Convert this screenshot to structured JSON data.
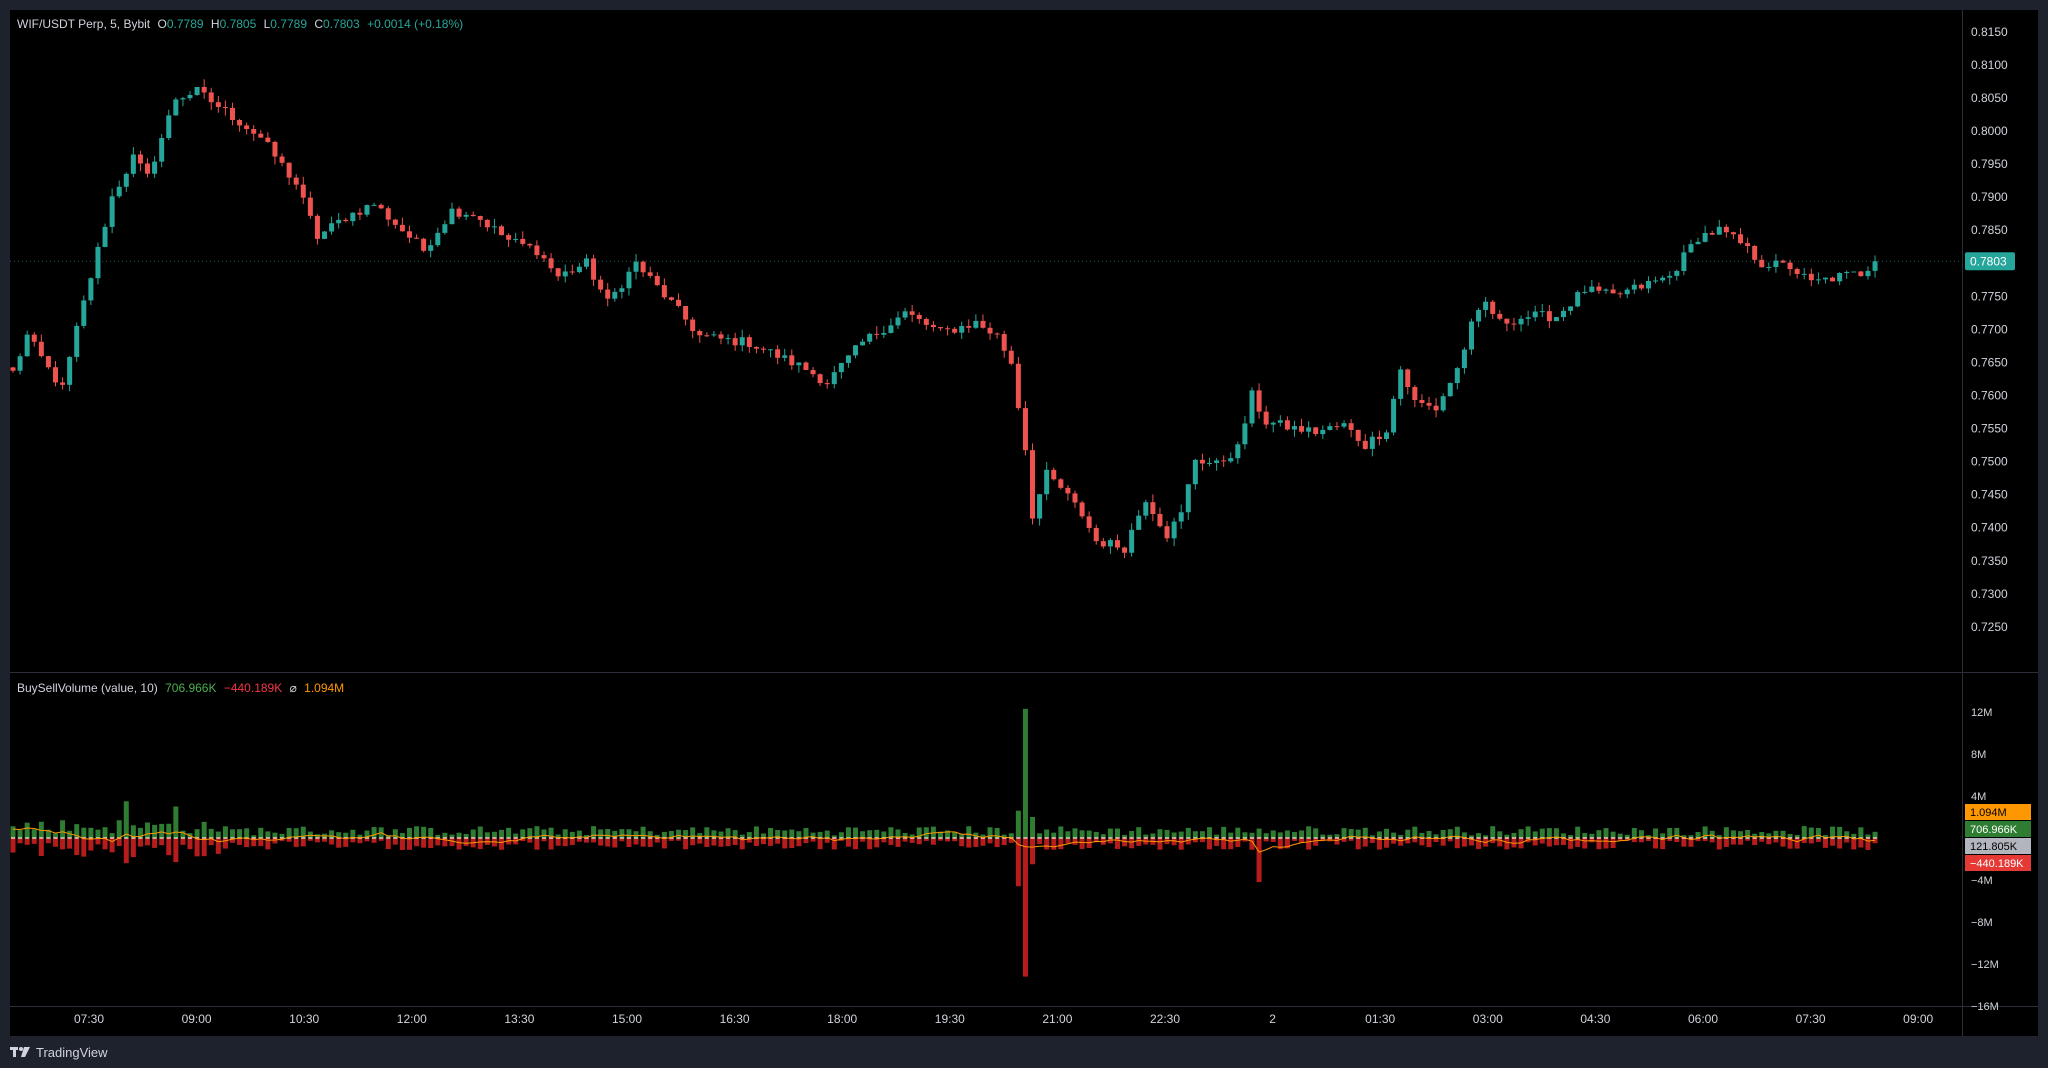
{
  "colors": {
    "up": "#26a69a",
    "down": "#ef5350",
    "buy_vol": "#2e7d32",
    "sell_vol": "#b71c1c",
    "avg_line": "#ff9800",
    "text": "#d1d4dc",
    "gray_label": "#b2b5be"
  },
  "header": {
    "symbol": "WIF/USDT Perp, 5, Bybit",
    "open_label": "O",
    "open": "0.7789",
    "high_label": "H",
    "high": "0.7805",
    "low_label": "L",
    "low": "0.7789",
    "close_label": "C",
    "close": "0.7803",
    "change": "+0.0014 (+0.18%)"
  },
  "indicator": {
    "name": "BuySellVolume (value, 10)",
    "buy": "706.966K",
    "sell": "−440.189K",
    "avg_symbol": "⌀",
    "avg": "1.094M"
  },
  "footer": {
    "brand": "TradingView"
  },
  "chart_data": [
    {
      "type": "candlestick",
      "title": "",
      "ylim": [
        0.7215,
        0.8165
      ],
      "y_ticks": [
        "0.8150",
        "0.8100",
        "0.8050",
        "0.8000",
        "0.7950",
        "0.7900",
        "0.7850",
        "0.7800",
        "0.7750",
        "0.7700",
        "0.7650",
        "0.7600",
        "0.7550",
        "0.7500",
        "0.7450",
        "0.7400",
        "0.7350",
        "0.7300",
        "0.7250"
      ],
      "last_price": "0.7803",
      "price_path": [
        [
          0,
          0.7635
        ],
        [
          2,
          0.769
        ],
        [
          5,
          0.764
        ],
        [
          7,
          0.761
        ],
        [
          9,
          0.77
        ],
        [
          11,
          0.778
        ],
        [
          14,
          0.79
        ],
        [
          17,
          0.796
        ],
        [
          19,
          0.793
        ],
        [
          23,
          0.805
        ],
        [
          26,
          0.806
        ],
        [
          30,
          0.803
        ],
        [
          35,
          0.799
        ],
        [
          40,
          0.792
        ],
        [
          43,
          0.784
        ],
        [
          47,
          0.787
        ],
        [
          51,
          0.789
        ],
        [
          55,
          0.785
        ],
        [
          58,
          0.782
        ],
        [
          62,
          0.788
        ],
        [
          65,
          0.7875
        ],
        [
          70,
          0.7835
        ],
        [
          74,
          0.782
        ],
        [
          77,
          0.778
        ],
        [
          81,
          0.78
        ],
        [
          84,
          0.774
        ],
        [
          88,
          0.78
        ],
        [
          93,
          0.774
        ],
        [
          97,
          0.769
        ],
        [
          100,
          0.7685
        ],
        [
          104,
          0.768
        ],
        [
          108,
          0.766
        ],
        [
          112,
          0.764
        ],
        [
          115,
          0.762
        ],
        [
          120,
          0.768
        ],
        [
          126,
          0.7725
        ],
        [
          131,
          0.7695
        ],
        [
          136,
          0.771
        ],
        [
          139,
          0.769
        ],
        [
          141,
          0.765
        ],
        [
          143,
          0.752
        ],
        [
          144,
          0.742
        ],
        [
          146,
          0.748
        ],
        [
          148,
          0.746
        ],
        [
          151,
          0.742
        ],
        [
          153,
          0.738
        ],
        [
          157,
          0.737
        ],
        [
          160,
          0.7445
        ],
        [
          163,
          0.739
        ],
        [
          165,
          0.742
        ],
        [
          167,
          0.7505
        ],
        [
          170,
          0.7495
        ],
        [
          173,
          0.752
        ],
        [
          175,
          0.76
        ],
        [
          177,
          0.756
        ],
        [
          181,
          0.755
        ],
        [
          184,
          0.7545
        ],
        [
          188,
          0.7555
        ],
        [
          191,
          0.7525
        ],
        [
          194,
          0.755
        ],
        [
          196,
          0.764
        ],
        [
          198,
          0.759
        ],
        [
          201,
          0.758
        ],
        [
          204,
          0.764
        ],
        [
          206,
          0.7705
        ],
        [
          208,
          0.774
        ],
        [
          210,
          0.771
        ],
        [
          214,
          0.772
        ],
        [
          218,
          0.772
        ],
        [
          222,
          0.776
        ],
        [
          226,
          0.775
        ],
        [
          230,
          0.7765
        ],
        [
          234,
          0.778
        ],
        [
          238,
          0.784
        ],
        [
          241,
          0.785
        ],
        [
          244,
          0.783
        ],
        [
          247,
          0.78
        ],
        [
          251,
          0.7795
        ],
        [
          254,
          0.777
        ],
        [
          258,
          0.778
        ],
        [
          261,
          0.7785
        ],
        [
          263,
          0.7803
        ]
      ],
      "candle_count": 264
    },
    {
      "type": "bar",
      "title": "BuySellVolume (value, 10)",
      "ylim": [
        -16,
        14
      ],
      "y_ticks": [
        "12M",
        "8M",
        "4M",
        "−4M",
        "−8M",
        "−12M",
        "−16M"
      ],
      "units": "M",
      "spikes": [
        {
          "index": 143,
          "buy": 12.3,
          "sell": -13.2
        },
        {
          "index": 142,
          "buy": 2.6,
          "sell": -4.6
        },
        {
          "index": 144,
          "buy": 2.0,
          "sell": -2.5
        },
        {
          "index": 176,
          "buy": 0.9,
          "sell": -4.2
        },
        {
          "index": 16,
          "buy": 3.5,
          "sell": -2.4
        },
        {
          "index": 23,
          "buy": 3.0,
          "sell": -2.3
        }
      ],
      "current_labels": {
        "avg": "1.094M",
        "buy": "706.966K",
        "neutral": "121.805K",
        "sell": "−440.189K"
      }
    }
  ],
  "x_axis": {
    "ticks": [
      "07:30",
      "09:00",
      "10:30",
      "12:00",
      "13:30",
      "15:00",
      "16:30",
      "18:00",
      "19:30",
      "21:00",
      "22:30",
      "2",
      "01:30",
      "03:00",
      "04:30",
      "06:00",
      "07:30",
      "09:00"
    ]
  }
}
